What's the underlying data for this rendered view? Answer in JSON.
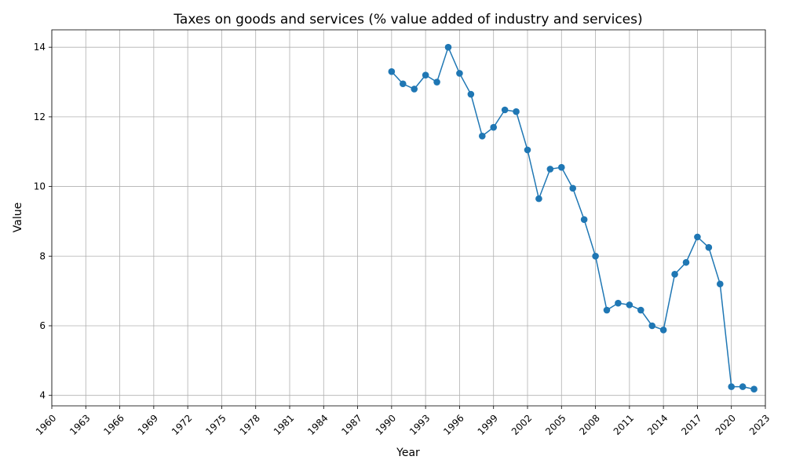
{
  "chart_data": {
    "type": "line",
    "title": "Taxes on goods and services (% value added of industry and services)",
    "xlabel": "Year",
    "ylabel": "Value",
    "xlim": [
      1960,
      2023
    ],
    "ylim": [
      3.7,
      14.5
    ],
    "x_ticks": [
      "1960",
      "1963",
      "1966",
      "1969",
      "1972",
      "1975",
      "1978",
      "1981",
      "1984",
      "1987",
      "1990",
      "1993",
      "1996",
      "1999",
      "2002",
      "2005",
      "2008",
      "2011",
      "2014",
      "2017",
      "2020",
      "2023"
    ],
    "y_ticks": [
      "4",
      "6",
      "8",
      "10",
      "12",
      "14"
    ],
    "grid": true,
    "color": "#1f77b4",
    "x": [
      1990,
      1991,
      1992,
      1993,
      1994,
      1995,
      1996,
      1997,
      1998,
      1999,
      2000,
      2001,
      2002,
      2003,
      2004,
      2005,
      2006,
      2007,
      2008,
      2009,
      2010,
      2011,
      2012,
      2013,
      2014,
      2015,
      2016,
      2017,
      2018,
      2019,
      2020,
      2021,
      2022
    ],
    "y": [
      13.3,
      12.95,
      12.8,
      13.2,
      13.0,
      14.0,
      13.25,
      12.65,
      11.45,
      11.7,
      12.2,
      12.15,
      11.05,
      9.65,
      10.5,
      10.55,
      9.95,
      9.05,
      8.0,
      6.45,
      6.65,
      6.6,
      6.45,
      6.0,
      5.88,
      7.48,
      7.82,
      8.55,
      8.25,
      7.2,
      4.25,
      4.25,
      4.18
    ]
  }
}
